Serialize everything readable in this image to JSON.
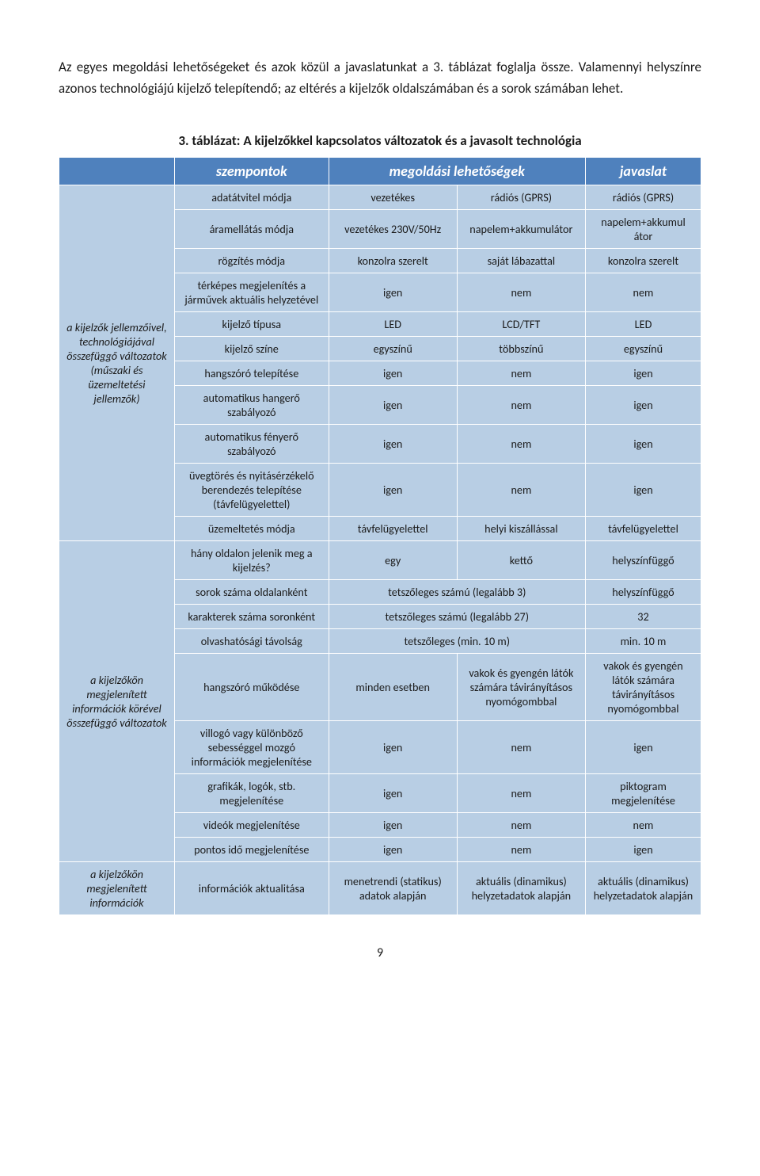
{
  "intro": "Az egyes megoldási lehetőségeket és azok közül a javaslatunkat a 3. táblázat foglalja össze. Valamennyi helyszínre azonos technológiájú kijelző telepítendő; az eltérés a kijelzők oldalszámában és a sorok számában lehet.",
  "caption": "3. táblázat: A kijelzőkkel kapcsolatos változatok és a javasolt technológia",
  "head": {
    "c0": "",
    "c1": "szempontok",
    "c2": "megoldási lehetőségek",
    "c3": "javaslat"
  },
  "cat1": {
    "label": "a kijelzők jellemzőivel, technológiájával összefüggő változatok (műszaki és üzemeltetési jellemzők)"
  },
  "cat2": {
    "label": "a kijelzőkön megjelenített információk körével összefüggő változatok"
  },
  "cat3": {
    "label": "a kijelzőkön megjelenített információk"
  },
  "r1": {
    "c1": "adatátvitel módja",
    "c2": "vezetékes",
    "c3": "rádiós (GPRS)",
    "c4": "rádiós (GPRS)"
  },
  "r2": {
    "c1": "áramellátás módja",
    "c2": "vezetékes 230V/50Hz",
    "c3": "napelem+akkumulátor",
    "c4": "napelem+akkumul átor"
  },
  "r3": {
    "c1": "rögzítés módja",
    "c2": "konzolra szerelt",
    "c3": "saját lábazattal",
    "c4": "konzolra szerelt"
  },
  "r4": {
    "c1": "térképes megjelenítés a járművek aktuális helyzetével",
    "c2": "igen",
    "c3": "nem",
    "c4": "nem"
  },
  "r5": {
    "c1": "kijelző típusa",
    "c2": "LED",
    "c3": "LCD/TFT",
    "c4": "LED"
  },
  "r6": {
    "c1": "kijelző színe",
    "c2": "egyszínű",
    "c3": "többszínű",
    "c4": "egyszínű"
  },
  "r7": {
    "c1": "hangszóró telepítése",
    "c2": "igen",
    "c3": "nem",
    "c4": "igen"
  },
  "r8": {
    "c1": "automatikus hangerő szabályozó",
    "c2": "igen",
    "c3": "nem",
    "c4": "igen"
  },
  "r9": {
    "c1": "automatikus fényerő szabályozó",
    "c2": "igen",
    "c3": "nem",
    "c4": "igen"
  },
  "r10": {
    "c1": "üvegtörés és nyitásérzékelő berendezés telepítése (távfelügyelettel)",
    "c2": "igen",
    "c3": "nem",
    "c4": "igen"
  },
  "r11": {
    "c1": "üzemeltetés módja",
    "c2": "távfelügyelettel",
    "c3": "helyi kiszállással",
    "c4": "távfelügyelettel"
  },
  "r12": {
    "c1": "hány oldalon jelenik meg a kijelzés?",
    "c2": "egy",
    "c3": "kettő",
    "c4": "helyszínfüggő"
  },
  "r13": {
    "c1": "sorok száma oldalanként",
    "span": "tetszőleges számú (legalább 3)",
    "c4": "helyszínfüggő"
  },
  "r14": {
    "c1": "karakterek száma soronként",
    "span": "tetszőleges számú (legalább 27)",
    "c4": "32"
  },
  "r15": {
    "c1": "olvashatósági távolság",
    "span": "tetszőleges (min. 10 m)",
    "c4": "min. 10 m"
  },
  "r16": {
    "c1": "hangszóró működése",
    "c2": "minden esetben",
    "c3": "vakok és gyengén látók számára távirányításos nyomógombbal",
    "c4": "vakok és gyengén látók számára távirányításos nyomógombbal"
  },
  "r17": {
    "c1": "villogó vagy különböző sebességgel mozgó információk megjelenítése",
    "c2": "igen",
    "c3": "nem",
    "c4": "igen"
  },
  "r18": {
    "c1": "grafikák, logók, stb. megjelenítése",
    "c2": "igen",
    "c3": "nem",
    "c4": "piktogram megjelenítése"
  },
  "r19": {
    "c1": "videók megjelenítése",
    "c2": "igen",
    "c3": "nem",
    "c4": "nem"
  },
  "r20": {
    "c1": "pontos idő megjelenítése",
    "c2": "igen",
    "c3": "nem",
    "c4": "igen"
  },
  "r21": {
    "c1": "információk aktualitása",
    "c2": "menetrendi (statikus) adatok alapján",
    "c3": "aktuális (dinamikus) helyzetadatok alapján",
    "c4": "aktuális (dinamikus) helyzetadatok alapján"
  },
  "pagenum": "9"
}
